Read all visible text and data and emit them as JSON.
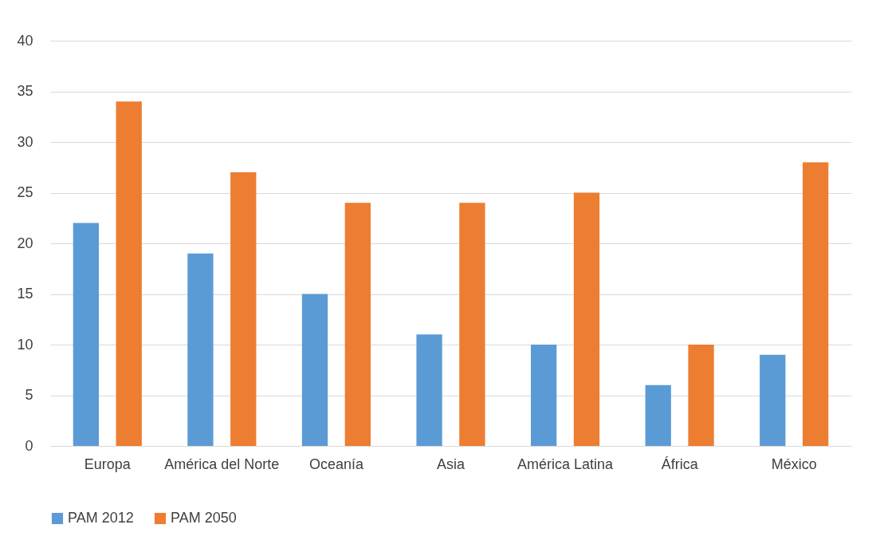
{
  "chart_data": {
    "type": "bar",
    "categories": [
      "Europa",
      "América del Norte",
      "Oceanía",
      "Asia",
      "América Latina",
      "África",
      "México"
    ],
    "series": [
      {
        "name": "PAM 2012",
        "color": "#5b9bd5",
        "values": [
          22,
          19,
          15,
          11,
          10,
          6,
          9
        ]
      },
      {
        "name": "PAM 2050",
        "color": "#ed7d31",
        "values": [
          34,
          27,
          24,
          24,
          25,
          10,
          28
        ]
      }
    ],
    "ylim": [
      0,
      40
    ],
    "yticks": [
      0,
      5,
      10,
      15,
      20,
      25,
      30,
      35,
      40
    ],
    "grid": "y",
    "legend": "bottom"
  }
}
